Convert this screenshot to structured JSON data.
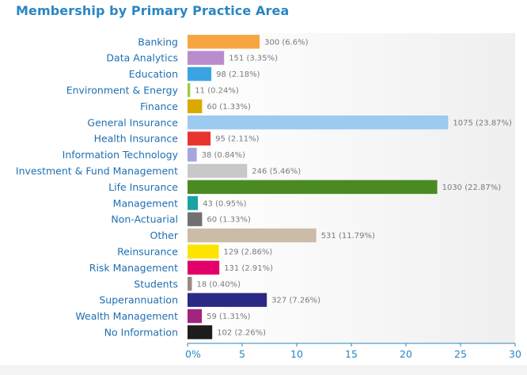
{
  "chart_data": {
    "type": "bar",
    "orientation": "horizontal",
    "title": "Membership by Primary Practice Area",
    "xlabel": "",
    "ylabel": "",
    "xlim": [
      0,
      30
    ],
    "grid": false,
    "legend": "none",
    "categories": [
      "Banking",
      "Data Analytics",
      "Education",
      "Environment & Energy",
      "Finance",
      "General Insurance",
      "Health Insurance",
      "Information Technology",
      "Investment & Fund Management",
      "Life Insurance",
      "Management",
      "Non-Actuarial",
      "Other",
      "Reinsurance",
      "Risk Management",
      "Students",
      "Superannuation",
      "Wealth Management",
      "No Information"
    ],
    "values": [
      6.6,
      3.35,
      2.18,
      0.24,
      1.33,
      23.87,
      2.11,
      0.84,
      5.46,
      22.87,
      0.95,
      1.33,
      11.79,
      2.86,
      2.91,
      0.4,
      7.26,
      1.31,
      2.26
    ],
    "data_labels": [
      "300 (6.6%)",
      "151 (3.35%)",
      "98 (2.18%)",
      "11 (0.24%)",
      "60 (1.33%)",
      "1075 (23.87%)",
      "95 (2.11%)",
      "38 (0.84%)",
      "246 (5.46%)",
      "1030 (22.87%)",
      "43 (0.95%)",
      "60 (1.33%)",
      "531 (11.79%)",
      "129 (2.86%)",
      "131 (2.91%)",
      "18 (0.40%)",
      "327 (7.26%)",
      "59 (1.31%)",
      "102 (2.26%)"
    ],
    "colors": [
      "#f7a541",
      "#b98ccd",
      "#3aa3e3",
      "#9acb3c",
      "#d9a900",
      "#9ccaf0",
      "#e8342f",
      "#a6a6de",
      "#c8c8c8",
      "#4b8a23",
      "#1aa3a3",
      "#707070",
      "#cbbba7",
      "#fce400",
      "#e2006a",
      "#9d8880",
      "#2b2a86",
      "#a1247f",
      "#1d1d1d"
    ],
    "x_ticks": [
      0,
      5,
      10,
      15,
      20,
      25,
      30
    ],
    "x_tick_labels": [
      "0%",
      "5",
      "10",
      "15",
      "20",
      "25",
      "30"
    ]
  }
}
